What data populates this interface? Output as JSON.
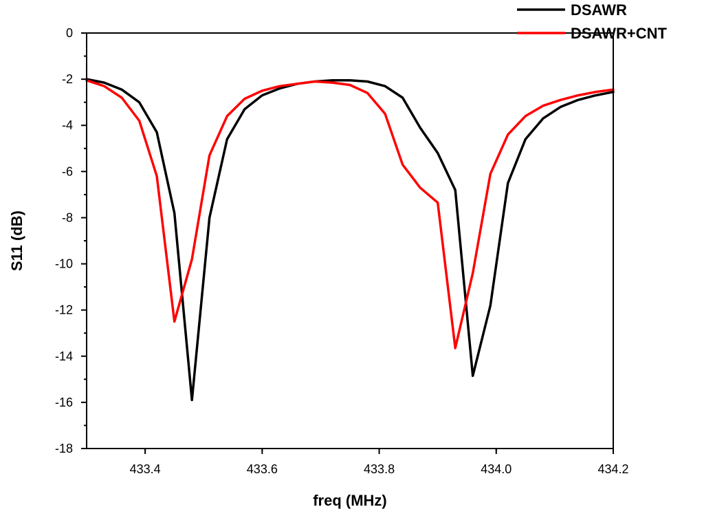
{
  "chart_data": {
    "type": "line",
    "title": "",
    "xlabel": "freq (MHz)",
    "ylabel": "S11 (dB)",
    "xlim": [
      433.3,
      434.2
    ],
    "ylim": [
      -18,
      0
    ],
    "x_ticks": [
      433.4,
      433.6,
      433.8,
      434.0,
      434.2
    ],
    "x_tick_labels": [
      "433.4",
      "433.6",
      "433.8",
      "434.0",
      "434.2"
    ],
    "y_ticks": [
      0,
      -2,
      -4,
      -6,
      -8,
      -10,
      -12,
      -14,
      -16,
      -18
    ],
    "y_tick_labels": [
      "0",
      "-2",
      "-4",
      "-6",
      "-8",
      "-10",
      "-12",
      "-14",
      "-16",
      "-18"
    ],
    "grid": false,
    "legend_position": "top-right",
    "series": [
      {
        "name": "DSAWR",
        "color": "#000000",
        "x": [
          433.3,
          433.33,
          433.36,
          433.39,
          433.42,
          433.45,
          433.48,
          433.51,
          433.54,
          433.57,
          433.6,
          433.63,
          433.66,
          433.69,
          433.72,
          433.75,
          433.78,
          433.81,
          433.84,
          433.87,
          433.9,
          433.93,
          433.96,
          433.99,
          434.02,
          434.05,
          434.08,
          434.11,
          434.14,
          434.17,
          434.2
        ],
        "values": [
          -2.0,
          -2.15,
          -2.45,
          -3.0,
          -4.3,
          -7.8,
          -15.9,
          -8.0,
          -4.6,
          -3.3,
          -2.7,
          -2.4,
          -2.2,
          -2.1,
          -2.05,
          -2.05,
          -2.1,
          -2.3,
          -2.8,
          -4.1,
          -5.2,
          -6.8,
          -14.85,
          -11.8,
          -6.5,
          -4.6,
          -3.7,
          -3.2,
          -2.9,
          -2.7,
          -2.55
        ]
      },
      {
        "name": "DSAWR+CNT",
        "color": "#ff0000",
        "x": [
          433.3,
          433.33,
          433.36,
          433.39,
          433.42,
          433.45,
          433.48,
          433.51,
          433.54,
          433.57,
          433.6,
          433.63,
          433.66,
          433.69,
          433.72,
          433.75,
          433.78,
          433.81,
          433.84,
          433.87,
          433.9,
          433.93,
          433.96,
          433.99,
          434.02,
          434.05,
          434.08,
          434.11,
          434.14,
          434.17,
          434.2
        ],
        "values": [
          -2.05,
          -2.3,
          -2.8,
          -3.8,
          -6.2,
          -12.5,
          -9.8,
          -5.3,
          -3.6,
          -2.85,
          -2.5,
          -2.3,
          -2.2,
          -2.1,
          -2.15,
          -2.25,
          -2.6,
          -3.5,
          -5.7,
          -6.7,
          -7.35,
          -13.65,
          -10.4,
          -6.1,
          -4.4,
          -3.6,
          -3.15,
          -2.9,
          -2.7,
          -2.55,
          -2.45
        ]
      }
    ]
  }
}
